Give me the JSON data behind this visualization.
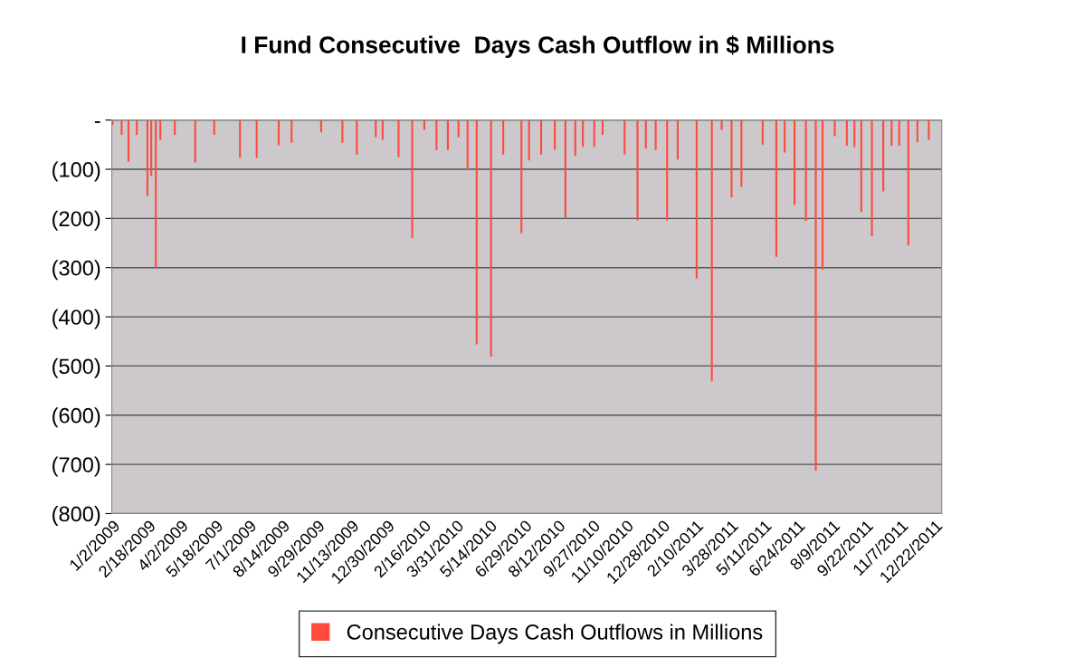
{
  "chart_data": {
    "type": "bar",
    "title": "I Fund Consecutive  Days Cash Outflow in $ Millions",
    "x": [
      "2009-01-02",
      "2009-01-14",
      "2009-01-23",
      "2009-02-03",
      "2009-02-17",
      "2009-02-22",
      "2009-02-28",
      "2009-03-06",
      "2009-03-25",
      "2009-04-21",
      "2009-05-16",
      "2009-06-19",
      "2009-07-11",
      "2009-08-09",
      "2009-08-26",
      "2009-10-04",
      "2009-11-01",
      "2009-11-20",
      "2009-12-15",
      "2009-12-24",
      "2010-01-14",
      "2010-02-01",
      "2010-02-17",
      "2010-03-05",
      "2010-03-20",
      "2010-04-03",
      "2010-04-15",
      "2010-04-27",
      "2010-05-16",
      "2010-06-01",
      "2010-06-25",
      "2010-07-05",
      "2010-07-21",
      "2010-08-08",
      "2010-08-22",
      "2010-09-04",
      "2010-09-14",
      "2010-09-29",
      "2010-10-10",
      "2010-11-08",
      "2010-11-25",
      "2010-12-06",
      "2010-12-19",
      "2011-01-03",
      "2011-01-17",
      "2011-02-11",
      "2011-03-03",
      "2011-03-16",
      "2011-03-29",
      "2011-04-11",
      "2011-05-09",
      "2011-05-27",
      "2011-06-07",
      "2011-06-20",
      "2011-07-05",
      "2011-07-18",
      "2011-07-27",
      "2011-08-12",
      "2011-08-28",
      "2011-09-07",
      "2011-09-16",
      "2011-09-30",
      "2011-10-15",
      "2011-10-26",
      "2011-11-05",
      "2011-11-17",
      "2011-11-29",
      "2011-12-14"
    ],
    "series": [
      {
        "name": "Consecutive Days Cash Outflows in Millions",
        "color": "#ff4a3d",
        "values": [
          -10,
          -30,
          -85,
          -30,
          -154,
          -114,
          -300,
          -40,
          -30,
          -86,
          -30,
          -77,
          -77,
          -51,
          -46,
          -25,
          -46,
          -70,
          -35,
          -40,
          -75,
          -240,
          -20,
          -61,
          -61,
          -35,
          -102,
          -456,
          -481,
          -70,
          -230,
          -82,
          -70,
          -60,
          -200,
          -73,
          -55,
          -55,
          -30,
          -70,
          -204,
          -58,
          -61,
          -204,
          -80,
          -322,
          -531,
          -20,
          -157,
          -136,
          -50,
          -278,
          -66,
          -172,
          -205,
          -712,
          -304,
          -33,
          -52,
          -55,
          -187,
          -236,
          -145,
          -52,
          -52,
          -255,
          -45,
          -40
        ]
      }
    ],
    "xlim": [
      "2009-01-01",
      "2011-12-31"
    ],
    "xticks": [
      {
        "value": "2009-01-02",
        "label": "1/2/2009"
      },
      {
        "value": "2009-02-18",
        "label": "2/18/2009"
      },
      {
        "value": "2009-04-02",
        "label": "4/2/2009"
      },
      {
        "value": "2009-05-18",
        "label": "5/18/2009"
      },
      {
        "value": "2009-07-01",
        "label": "7/1/2009"
      },
      {
        "value": "2009-08-14",
        "label": "8/14/2009"
      },
      {
        "value": "2009-09-29",
        "label": "9/29/2009"
      },
      {
        "value": "2009-11-13",
        "label": "11/13/2009"
      },
      {
        "value": "2009-12-30",
        "label": "12/30/2009"
      },
      {
        "value": "2010-02-16",
        "label": "2/16/2010"
      },
      {
        "value": "2010-03-31",
        "label": "3/31/2010"
      },
      {
        "value": "2010-05-14",
        "label": "5/14/2010"
      },
      {
        "value": "2010-06-29",
        "label": "6/29/2010"
      },
      {
        "value": "2010-08-12",
        "label": "8/12/2010"
      },
      {
        "value": "2010-09-27",
        "label": "9/27/2010"
      },
      {
        "value": "2010-11-10",
        "label": "11/10/2010"
      },
      {
        "value": "2010-12-28",
        "label": "12/28/2010"
      },
      {
        "value": "2011-02-10",
        "label": "2/10/2011"
      },
      {
        "value": "2011-03-28",
        "label": "3/28/2011"
      },
      {
        "value": "2011-05-11",
        "label": "5/11/2011"
      },
      {
        "value": "2011-06-24",
        "label": "6/24/2011"
      },
      {
        "value": "2011-08-09",
        "label": "8/9/2011"
      },
      {
        "value": "2011-09-22",
        "label": "9/22/2011"
      },
      {
        "value": "2011-11-07",
        "label": "11/7/2011"
      },
      {
        "value": "2011-12-22",
        "label": "12/22/2011"
      }
    ],
    "ylim": [
      -800,
      0
    ],
    "yticks": [
      {
        "value": 0,
        "label": "-"
      },
      {
        "value": -100,
        "label": "(100)"
      },
      {
        "value": -200,
        "label": "(200)"
      },
      {
        "value": -300,
        "label": "(300)"
      },
      {
        "value": -400,
        "label": "(400)"
      },
      {
        "value": -500,
        "label": "(500)"
      },
      {
        "value": -600,
        "label": "(600)"
      },
      {
        "value": -700,
        "label": "(700)"
      },
      {
        "value": -800,
        "label": "(800)"
      }
    ],
    "grid": "y",
    "legend": "bottom"
  }
}
